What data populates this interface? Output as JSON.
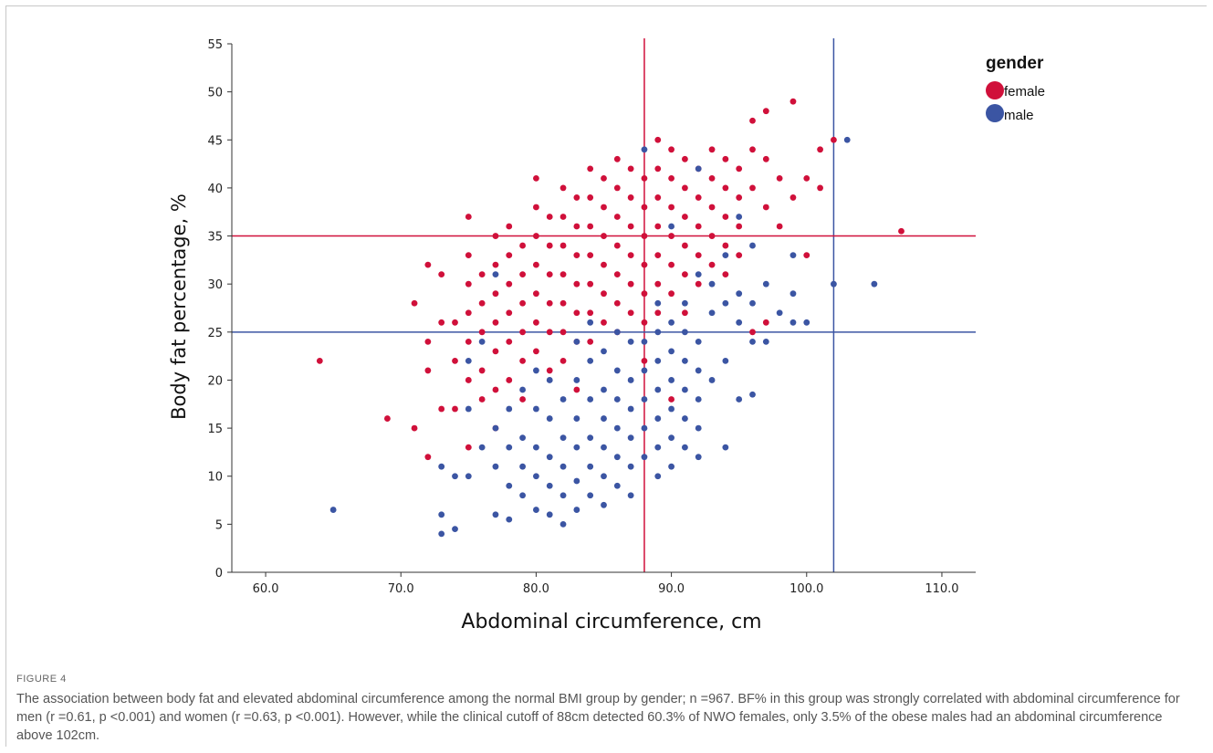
{
  "figure_label": "FIGURE 4",
  "caption": "The association between body fat and elevated abdominal circumference among the normal BMI group by gender; n =967. BF% in this group was strongly correlated with abdominal circumference for men (r =0.61, p <0.001) and women (r =0.63, p <0.001). However, while the clinical cutoff of 88cm detected 60.3% of NWO females, only 3.5% of the obese males had an abdominal circumference above 102cm.",
  "chart_data": {
    "type": "scatter",
    "xlabel": "Abdominal circumference, cm",
    "ylabel": "Body fat percentage, %",
    "xlim": [
      57.5,
      112.5
    ],
    "ylim": [
      0,
      55
    ],
    "x_ticks": [
      "60.0",
      "70.0",
      "80.0",
      "90.0",
      "100.0",
      "110.0"
    ],
    "y_ticks": [
      "0",
      "5",
      "10",
      "15",
      "20",
      "25",
      "30",
      "35",
      "40",
      "45",
      "50",
      "55"
    ],
    "grid": false,
    "legend": {
      "title": "gender",
      "position": "top-right"
    },
    "reference_lines": [
      {
        "axis": "x",
        "value": 88,
        "color": "#d0103a"
      },
      {
        "axis": "x",
        "value": 102,
        "color": "#3b55a3"
      },
      {
        "axis": "y",
        "value": 35,
        "color": "#d0103a"
      },
      {
        "axis": "y",
        "value": 25,
        "color": "#3b55a3"
      }
    ],
    "series": [
      {
        "name": "female",
        "color": "#d0103a",
        "points": [
          [
            64,
            22
          ],
          [
            69,
            16
          ],
          [
            71,
            15
          ],
          [
            71,
            28
          ],
          [
            72,
            24
          ],
          [
            72,
            21
          ],
          [
            72,
            12
          ],
          [
            72,
            32
          ],
          [
            73,
            31
          ],
          [
            73,
            26
          ],
          [
            73,
            17
          ],
          [
            74,
            26
          ],
          [
            74,
            22
          ],
          [
            74,
            17
          ],
          [
            75,
            37
          ],
          [
            75,
            33
          ],
          [
            75,
            30
          ],
          [
            75,
            27
          ],
          [
            75,
            24
          ],
          [
            75,
            20
          ],
          [
            75,
            13
          ],
          [
            76,
            31
          ],
          [
            76,
            28
          ],
          [
            76,
            25
          ],
          [
            76,
            21
          ],
          [
            76,
            18
          ],
          [
            77,
            35
          ],
          [
            77,
            32
          ],
          [
            77,
            29
          ],
          [
            77,
            26
          ],
          [
            77,
            23
          ],
          [
            77,
            19
          ],
          [
            77,
            15
          ],
          [
            78,
            36
          ],
          [
            78,
            33
          ],
          [
            78,
            30
          ],
          [
            78,
            27
          ],
          [
            78,
            24
          ],
          [
            78,
            20
          ],
          [
            79,
            34
          ],
          [
            79,
            31
          ],
          [
            79,
            28
          ],
          [
            79,
            25
          ],
          [
            79,
            22
          ],
          [
            79,
            18
          ],
          [
            80,
            41
          ],
          [
            80,
            38
          ],
          [
            80,
            35
          ],
          [
            80,
            32
          ],
          [
            80,
            29
          ],
          [
            80,
            26
          ],
          [
            80,
            23
          ],
          [
            81,
            37
          ],
          [
            81,
            34
          ],
          [
            81,
            31
          ],
          [
            81,
            28
          ],
          [
            81,
            25
          ],
          [
            81,
            21
          ],
          [
            82,
            40
          ],
          [
            82,
            37
          ],
          [
            82,
            34
          ],
          [
            82,
            31
          ],
          [
            82,
            28
          ],
          [
            82,
            25
          ],
          [
            82,
            22
          ],
          [
            83,
            39
          ],
          [
            83,
            36
          ],
          [
            83,
            33
          ],
          [
            83,
            30
          ],
          [
            83,
            27
          ],
          [
            83,
            24
          ],
          [
            83,
            19
          ],
          [
            84,
            42
          ],
          [
            84,
            39
          ],
          [
            84,
            36
          ],
          [
            84,
            33
          ],
          [
            84,
            30
          ],
          [
            84,
            27
          ],
          [
            84,
            24
          ],
          [
            85,
            41
          ],
          [
            85,
            38
          ],
          [
            85,
            35
          ],
          [
            85,
            32
          ],
          [
            85,
            29
          ],
          [
            85,
            26
          ],
          [
            86,
            43
          ],
          [
            86,
            40
          ],
          [
            86,
            37
          ],
          [
            86,
            34
          ],
          [
            86,
            31
          ],
          [
            86,
            28
          ],
          [
            86,
            25
          ],
          [
            87,
            42
          ],
          [
            87,
            39
          ],
          [
            87,
            36
          ],
          [
            87,
            33
          ],
          [
            87,
            30
          ],
          [
            87,
            27
          ],
          [
            88,
            41
          ],
          [
            88,
            38
          ],
          [
            88,
            35
          ],
          [
            88,
            32
          ],
          [
            88,
            29
          ],
          [
            88,
            26
          ],
          [
            88,
            22
          ],
          [
            89,
            45
          ],
          [
            89,
            42
          ],
          [
            89,
            39
          ],
          [
            89,
            36
          ],
          [
            89,
            33
          ],
          [
            89,
            30
          ],
          [
            89,
            27
          ],
          [
            90,
            44
          ],
          [
            90,
            41
          ],
          [
            90,
            38
          ],
          [
            90,
            35
          ],
          [
            90,
            32
          ],
          [
            90,
            29
          ],
          [
            90,
            18
          ],
          [
            91,
            43
          ],
          [
            91,
            40
          ],
          [
            91,
            37
          ],
          [
            91,
            34
          ],
          [
            91,
            31
          ],
          [
            91,
            27
          ],
          [
            92,
            42
          ],
          [
            92,
            39
          ],
          [
            92,
            36
          ],
          [
            92,
            33
          ],
          [
            92,
            30
          ],
          [
            93,
            44
          ],
          [
            93,
            41
          ],
          [
            93,
            38
          ],
          [
            93,
            35
          ],
          [
            93,
            32
          ],
          [
            94,
            43
          ],
          [
            94,
            40
          ],
          [
            94,
            37
          ],
          [
            94,
            34
          ],
          [
            94,
            31
          ],
          [
            95,
            42
          ],
          [
            95,
            39
          ],
          [
            95,
            36
          ],
          [
            95,
            33
          ],
          [
            96,
            47
          ],
          [
            96,
            44
          ],
          [
            96,
            40
          ],
          [
            96,
            25
          ],
          [
            97,
            48
          ],
          [
            97,
            43
          ],
          [
            97,
            38
          ],
          [
            97,
            26
          ],
          [
            98,
            41
          ],
          [
            98,
            36
          ],
          [
            99,
            49
          ],
          [
            99,
            39
          ],
          [
            100,
            41
          ],
          [
            100,
            33
          ],
          [
            101,
            44
          ],
          [
            101,
            40
          ],
          [
            102,
            45
          ],
          [
            107,
            35.5
          ]
        ]
      },
      {
        "name": "male",
        "color": "#3b55a3",
        "points": [
          [
            65,
            6.5
          ],
          [
            73,
            4
          ],
          [
            73,
            6
          ],
          [
            73,
            11
          ],
          [
            74,
            4.5
          ],
          [
            74,
            10
          ],
          [
            75,
            10
          ],
          [
            75,
            17
          ],
          [
            75,
            22
          ],
          [
            76,
            13
          ],
          [
            76,
            24
          ],
          [
            77,
            6
          ],
          [
            77,
            11
          ],
          [
            77,
            15
          ],
          [
            77,
            31
          ],
          [
            78,
            5.5
          ],
          [
            78,
            9
          ],
          [
            78,
            13
          ],
          [
            78,
            17
          ],
          [
            79,
            8
          ],
          [
            79,
            11
          ],
          [
            79,
            14
          ],
          [
            79,
            19
          ],
          [
            80,
            6.5
          ],
          [
            80,
            10
          ],
          [
            80,
            13
          ],
          [
            80,
            17
          ],
          [
            80,
            21
          ],
          [
            81,
            6
          ],
          [
            81,
            9
          ],
          [
            81,
            12
          ],
          [
            81,
            16
          ],
          [
            81,
            20
          ],
          [
            82,
            5
          ],
          [
            82,
            8
          ],
          [
            82,
            11
          ],
          [
            82,
            14
          ],
          [
            82,
            18
          ],
          [
            83,
            6.5
          ],
          [
            83,
            9.5
          ],
          [
            83,
            13
          ],
          [
            83,
            16
          ],
          [
            83,
            20
          ],
          [
            83,
            24
          ],
          [
            84,
            8
          ],
          [
            84,
            11
          ],
          [
            84,
            14
          ],
          [
            84,
            18
          ],
          [
            84,
            22
          ],
          [
            84,
            26
          ],
          [
            85,
            7
          ],
          [
            85,
            10
          ],
          [
            85,
            13
          ],
          [
            85,
            16
          ],
          [
            85,
            19
          ],
          [
            85,
            23
          ],
          [
            86,
            9
          ],
          [
            86,
            12
          ],
          [
            86,
            15
          ],
          [
            86,
            18
          ],
          [
            86,
            21
          ],
          [
            86,
            25
          ],
          [
            87,
            8
          ],
          [
            87,
            11
          ],
          [
            87,
            14
          ],
          [
            87,
            17
          ],
          [
            87,
            20
          ],
          [
            87,
            24
          ],
          [
            88,
            12
          ],
          [
            88,
            15
          ],
          [
            88,
            18
          ],
          [
            88,
            21
          ],
          [
            88,
            24
          ],
          [
            88,
            44
          ],
          [
            89,
            10
          ],
          [
            89,
            13
          ],
          [
            89,
            16
          ],
          [
            89,
            19
          ],
          [
            89,
            22
          ],
          [
            89,
            25
          ],
          [
            89,
            28
          ],
          [
            90,
            11
          ],
          [
            90,
            14
          ],
          [
            90,
            17
          ],
          [
            90,
            20
          ],
          [
            90,
            23
          ],
          [
            90,
            26
          ],
          [
            90,
            36
          ],
          [
            91,
            13
          ],
          [
            91,
            16
          ],
          [
            91,
            19
          ],
          [
            91,
            22
          ],
          [
            91,
            25
          ],
          [
            91,
            28
          ],
          [
            92,
            12
          ],
          [
            92,
            15
          ],
          [
            92,
            18
          ],
          [
            92,
            21
          ],
          [
            92,
            24
          ],
          [
            92,
            31
          ],
          [
            92,
            42
          ],
          [
            93,
            20
          ],
          [
            93,
            27
          ],
          [
            93,
            30
          ],
          [
            94,
            13
          ],
          [
            94,
            22
          ],
          [
            94,
            28
          ],
          [
            94,
            33
          ],
          [
            95,
            18
          ],
          [
            95,
            26
          ],
          [
            95,
            29
          ],
          [
            95,
            37
          ],
          [
            96,
            18.5
          ],
          [
            96,
            24
          ],
          [
            96,
            28
          ],
          [
            96,
            34
          ],
          [
            97,
            24
          ],
          [
            97,
            30
          ],
          [
            98,
            27
          ],
          [
            99,
            26
          ],
          [
            99,
            29
          ],
          [
            99,
            33
          ],
          [
            100,
            26
          ],
          [
            102,
            30
          ],
          [
            103,
            45
          ],
          [
            105,
            30
          ]
        ]
      }
    ]
  }
}
